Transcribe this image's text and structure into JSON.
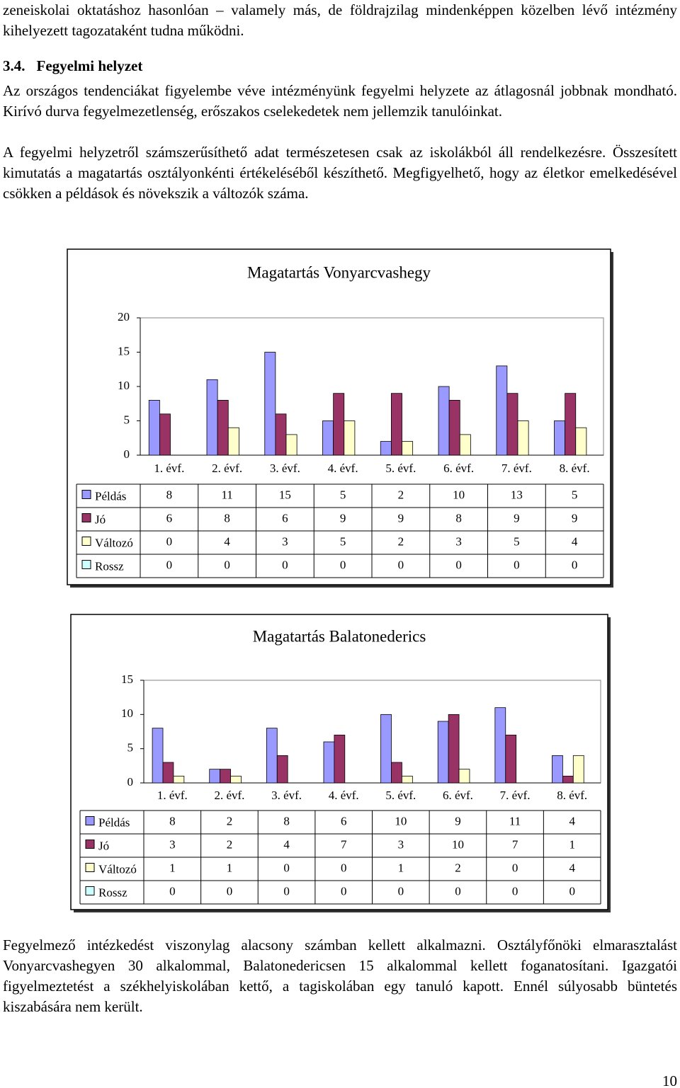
{
  "document": {
    "paragraphs_top": [
      "zeneiskolai oktatáshoz hasonlóan – valamely más, de földrajzilag mindenképpen közelben lévő intézmény kihelyezett tagozataként tudna működni."
    ],
    "heading": {
      "number": "3.4.",
      "title": "Fegyelmi helyzet"
    },
    "paragraphs": [
      "Az országos tendenciákat figyelembe véve intézményünk fegyelmi helyzete az átlagosnál jobbnak mondható. Kirívó durva fegyelmezetlenség, erőszakos cselekedetek nem jellemzik tanulóinkat.",
      "A fegyelmi helyzetről számszerűsíthető adat természetesen csak az iskolákból áll rendelkezésre. Összesített kimutatás a magatartás osztályonkénti értékeléséből készíthető. Megfigyelhető, hogy az életkor emelkedésével csökken a példások és növekszik a változók száma."
    ],
    "paragraphs_bottom": [
      "Fegyelmező intézkedést viszonylag alacsony számban kellett alkalmazni. Osztályfőnöki elmarasztalást Vonyarcvashegyen 30 alkalommal, Balatonedericsen 15 alkalommal kellett foganatosítani. Igazgatói figyelmeztetést a székhelyiskolában kettő, a tagiskolában egy tanuló kapott. Ennél súlyosabb büntetés kiszabására nem került."
    ],
    "page_number": "10"
  },
  "chart_data": [
    {
      "type": "bar",
      "title": "Magatartás Vonyarcvashegy",
      "categories": [
        "1. évf.",
        "2. évf.",
        "3. évf.",
        "4. évf.",
        "5. évf.",
        "6. évf.",
        "7. évf.",
        "8. évf."
      ],
      "series": [
        {
          "name": "Példás",
          "color": "#9999ff",
          "values": [
            8,
            11,
            15,
            5,
            2,
            10,
            13,
            5
          ]
        },
        {
          "name": "Jó",
          "color": "#993366",
          "values": [
            6,
            8,
            6,
            9,
            9,
            8,
            9,
            9
          ]
        },
        {
          "name": "Változó",
          "color": "#ffffcc",
          "values": [
            0,
            4,
            3,
            5,
            2,
            3,
            5,
            4
          ]
        },
        {
          "name": "Rossz",
          "color": "#ccffff",
          "values": [
            0,
            0,
            0,
            0,
            0,
            0,
            0,
            0
          ]
        }
      ],
      "ylim": [
        0,
        20
      ],
      "yticks": [
        0,
        5,
        10,
        15,
        20
      ],
      "grid": false,
      "data_table": true
    },
    {
      "type": "bar",
      "title": "Magatartás Balatonederics",
      "categories": [
        "1. évf.",
        "2. évf.",
        "3. évf.",
        "4. évf.",
        "5. évf.",
        "6. évf.",
        "7. évf.",
        "8. évf."
      ],
      "series": [
        {
          "name": "Példás",
          "color": "#9999ff",
          "values": [
            8,
            2,
            8,
            6,
            10,
            9,
            11,
            4
          ]
        },
        {
          "name": "Jó",
          "color": "#993366",
          "values": [
            3,
            2,
            4,
            7,
            3,
            10,
            7,
            1
          ]
        },
        {
          "name": "Változó",
          "color": "#ffffcc",
          "values": [
            1,
            1,
            0,
            0,
            1,
            2,
            0,
            4
          ]
        },
        {
          "name": "Rossz",
          "color": "#ccffff",
          "values": [
            0,
            0,
            0,
            0,
            0,
            0,
            0,
            0
          ]
        }
      ],
      "ylim": [
        0,
        15
      ],
      "yticks": [
        0,
        5,
        10,
        15
      ],
      "grid": false,
      "data_table": true
    }
  ]
}
